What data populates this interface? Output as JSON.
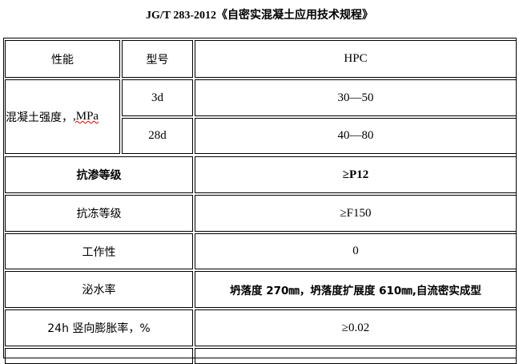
{
  "title": "JG/T 283-2012《自密实混凝土应用技术规程》",
  "header": {
    "col1": "性能",
    "col2": "型号",
    "col3": "HPC"
  },
  "strength": {
    "label": "混凝土强度，",
    "unit": ",MPa",
    "rows": [
      {
        "age": "3d",
        "value": "30—50"
      },
      {
        "age": "28d",
        "value": "40—80"
      }
    ]
  },
  "rows": [
    {
      "label": "抗渗等级",
      "value": "≥P12",
      "bold": true
    },
    {
      "label": "抗冻等级",
      "value": "≥F150"
    },
    {
      "label": "工作性",
      "value": "0"
    },
    {
      "label": "泌水率",
      "value": "坍落度 270㎜，坍落度扩展度 610㎜,自流密实成型",
      "bold_value": true
    },
    {
      "label": "24h 竖向膨胀率，%",
      "value": "≥0.02"
    }
  ]
}
